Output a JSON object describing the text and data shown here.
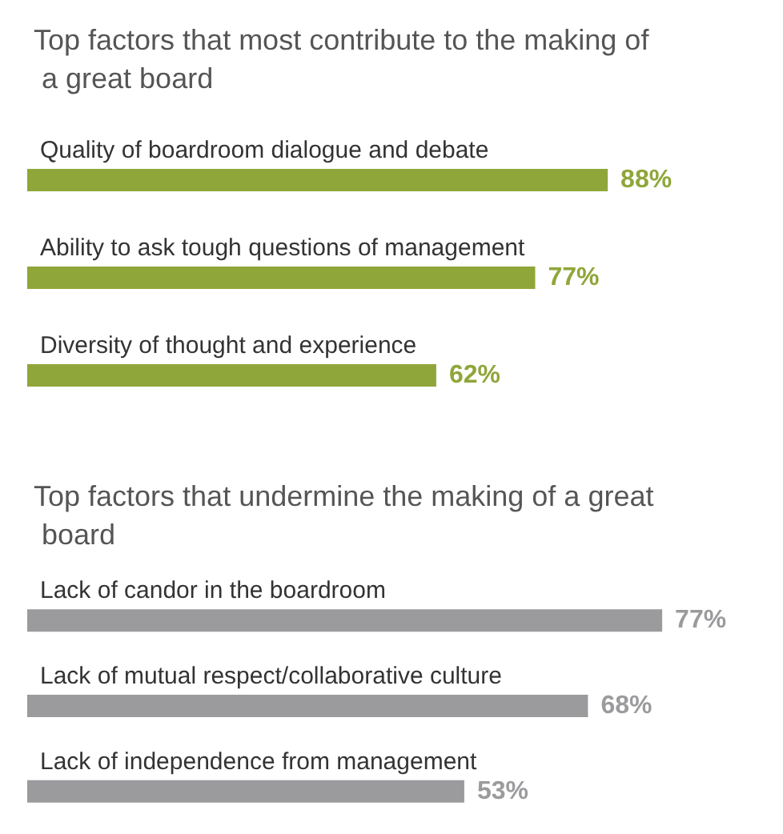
{
  "chart_data": [
    {
      "type": "bar",
      "orientation": "horizontal",
      "title": "Top factors that most contribute to the making of a great board",
      "categories": [
        "Quality of boardroom dialogue and debate",
        "Ability to ask tough questions of management",
        "Diversity of thought and experience"
      ],
      "values": [
        88,
        77,
        62
      ],
      "value_labels": [
        "88%",
        "77%",
        "62%"
      ],
      "color": "#8fa63a"
    },
    {
      "type": "bar",
      "orientation": "horizontal",
      "title": "Top factors that undermine the making of a great board",
      "categories": [
        "Lack of candor in the boardroom",
        "Lack of mutual respect/collaborative culture",
        "Lack of independence from management"
      ],
      "values": [
        77,
        68,
        53
      ],
      "value_labels": [
        "77%",
        "68%",
        "53%"
      ],
      "color": "#9b9b9e"
    }
  ]
}
